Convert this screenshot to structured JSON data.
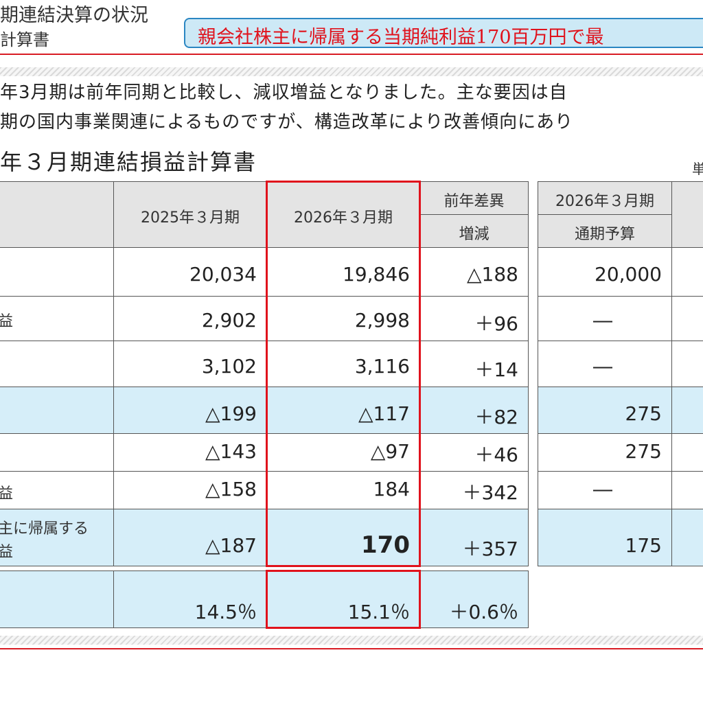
{
  "header": {
    "title": "期連結決算の状況",
    "subtitle": "計算書",
    "banner": "親会社株主に帰属する当期純利益170百万円で最"
  },
  "paragraph": {
    "line1": "年3月期は前年同期と比較し、減収増益となりました。主な要因は自",
    "line2": "期の国内事業関連によるものですが、構造改革により改善傾向にあり"
  },
  "table": {
    "title": "年３月期連結損益計算書",
    "unit": "単",
    "headers": {
      "prev": "2025年３月期",
      "curr": "2026年３月期",
      "diff_group": "前年差異",
      "diff": "増減",
      "forecast_year": "2026年３月期",
      "forecast": "通期予算"
    },
    "rows": [
      {
        "label": "",
        "prev": "20,034",
        "curr": "19,846",
        "diff": "△188",
        "forecast": "20,000"
      },
      {
        "label": "益",
        "prev": "2,902",
        "curr": "2,998",
        "diff": "＋96",
        "forecast": "―"
      },
      {
        "label": "",
        "prev": "3,102",
        "curr": "3,116",
        "diff": "＋14",
        "forecast": "―"
      },
      {
        "label": "",
        "prev": "△199",
        "curr": "△117",
        "diff": "＋82",
        "forecast": "275"
      },
      {
        "label": "",
        "prev": "△143",
        "curr": "△97",
        "diff": "＋46",
        "forecast": "275"
      },
      {
        "label": "益",
        "prev": "△158",
        "curr": "184",
        "diff": "＋342",
        "forecast": "―"
      },
      {
        "label1": "主に帰属する",
        "label2": "益",
        "prev": "△187",
        "curr": "170",
        "diff": "＋357",
        "forecast": "175"
      }
    ],
    "ratio": {
      "prev": "14.5％",
      "curr": "15.1％",
      "diff": "＋0.6％"
    }
  }
}
